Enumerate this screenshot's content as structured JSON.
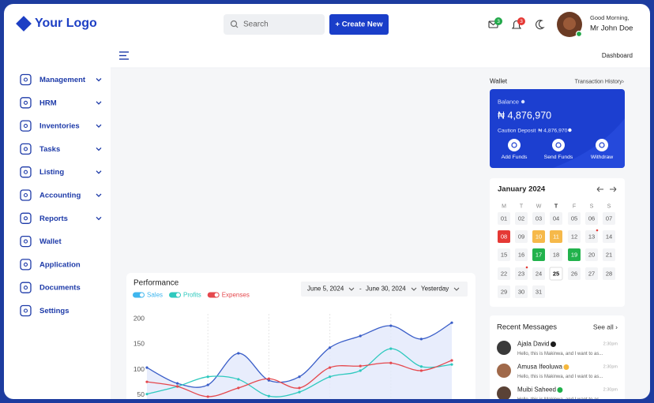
{
  "header": {
    "logo": "Your Logo",
    "search_placeholder": "Search",
    "create_button": "+ Create New",
    "mail_badge": 3,
    "notification_badge": 3,
    "greeting": "Good Morning,",
    "user_name": "Mr John Doe"
  },
  "breadcrumb": "Dashboard",
  "sidebar": {
    "items": [
      {
        "label": "Management",
        "submenu": true
      },
      {
        "label": "HRM",
        "submenu": true
      },
      {
        "label": "Inventories",
        "submenu": true
      },
      {
        "label": "Tasks",
        "submenu": true
      },
      {
        "label": "Listing",
        "submenu": true
      },
      {
        "label": "Accounting",
        "submenu": true
      },
      {
        "label": "Reports",
        "submenu": true
      },
      {
        "label": "Wallet",
        "submenu": false
      },
      {
        "label": "Application",
        "submenu": false
      },
      {
        "label": "Documents",
        "submenu": false
      },
      {
        "label": "Settings",
        "submenu": false
      }
    ]
  },
  "performance": {
    "filters": {
      "start_date": "June 5, 2024",
      "separator": "-",
      "end_date": "June 30, 2024",
      "period": "Yesterday"
    }
  },
  "chart_data": {
    "type": "line",
    "title": "Performance",
    "categories": [
      null,
      null,
      null,
      null,
      null,
      null,
      null,
      null,
      null,
      null,
      null
    ],
    "series": [
      {
        "name": "Sales",
        "color": "#3a5ec8",
        "legend_color": "#3fb6ee",
        "area_color": "#e2e8fb",
        "values": [
          104,
          73,
          70,
          132,
          79,
          86,
          143,
          166,
          186,
          160,
          192
        ]
      },
      {
        "name": "Profits",
        "color": "#2ec9be",
        "legend_color": "#2ec9be",
        "values": [
          52,
          67,
          86,
          81,
          48,
          56,
          86,
          98,
          141,
          106,
          110
        ]
      },
      {
        "name": "Expenses",
        "color": "#e5484d",
        "legend_color": "#e5484d",
        "values": [
          76,
          67,
          47,
          64,
          82,
          64,
          104,
          107,
          113,
          98,
          118
        ]
      }
    ],
    "ylim": [
      0,
      200
    ],
    "yticks": [
      50,
      100,
      150,
      200
    ],
    "grid": false
  },
  "wallet": {
    "title": "Wallet",
    "history_link": "Transaction History›",
    "balance_label": "Balance",
    "balance": "₦ 4,876,970",
    "deposit_label": "Caution Deposit",
    "deposit": "₦ 4,876,970",
    "actions": [
      "Add Funds",
      "Send Funds",
      "Withdraw"
    ]
  },
  "calendar": {
    "month": "January 2024",
    "weekdays": [
      "M",
      "T",
      "W",
      "T",
      "F",
      "S",
      "S"
    ],
    "days": [
      {
        "label": "01"
      },
      {
        "label": "02"
      },
      {
        "label": "03"
      },
      {
        "label": "04"
      },
      {
        "label": "05"
      },
      {
        "label": "06"
      },
      {
        "label": "07"
      },
      {
        "label": "08",
        "status": "red"
      },
      {
        "label": "09"
      },
      {
        "label": "10",
        "status": "orange"
      },
      {
        "label": "11",
        "status": "orange"
      },
      {
        "label": "12"
      },
      {
        "label": "13",
        "dot": true
      },
      {
        "label": "14"
      },
      {
        "label": "15"
      },
      {
        "label": "16"
      },
      {
        "label": "17",
        "status": "green"
      },
      {
        "label": "18"
      },
      {
        "label": "19",
        "status": "green"
      },
      {
        "label": "20"
      },
      {
        "label": "21"
      },
      {
        "label": "22"
      },
      {
        "label": "23",
        "dot": true
      },
      {
        "label": "24"
      },
      {
        "label": "25",
        "status": "today"
      },
      {
        "label": "26"
      },
      {
        "label": "27"
      },
      {
        "label": "28"
      },
      {
        "label": "29"
      },
      {
        "label": "30"
      },
      {
        "label": "31"
      }
    ]
  },
  "messages": {
    "title": "Recent Messages",
    "see_all": "See all ›",
    "items": [
      {
        "name": "Ajala David",
        "badge": "#1c1c1c",
        "text": "Hello, this is Makinwa, and I want to as...",
        "time": "2:30pm"
      },
      {
        "name": "Amusa Ifeoluwa",
        "badge": "#f5b83d",
        "text": "Hello, this is Makinwa, and I want to as...",
        "time": "2:30pm"
      },
      {
        "name": "Muibi Saheed",
        "badge": "#22b24c",
        "text": "Hello, this is Makinwa, and I want to as...",
        "time": "2:30pm"
      }
    ]
  }
}
